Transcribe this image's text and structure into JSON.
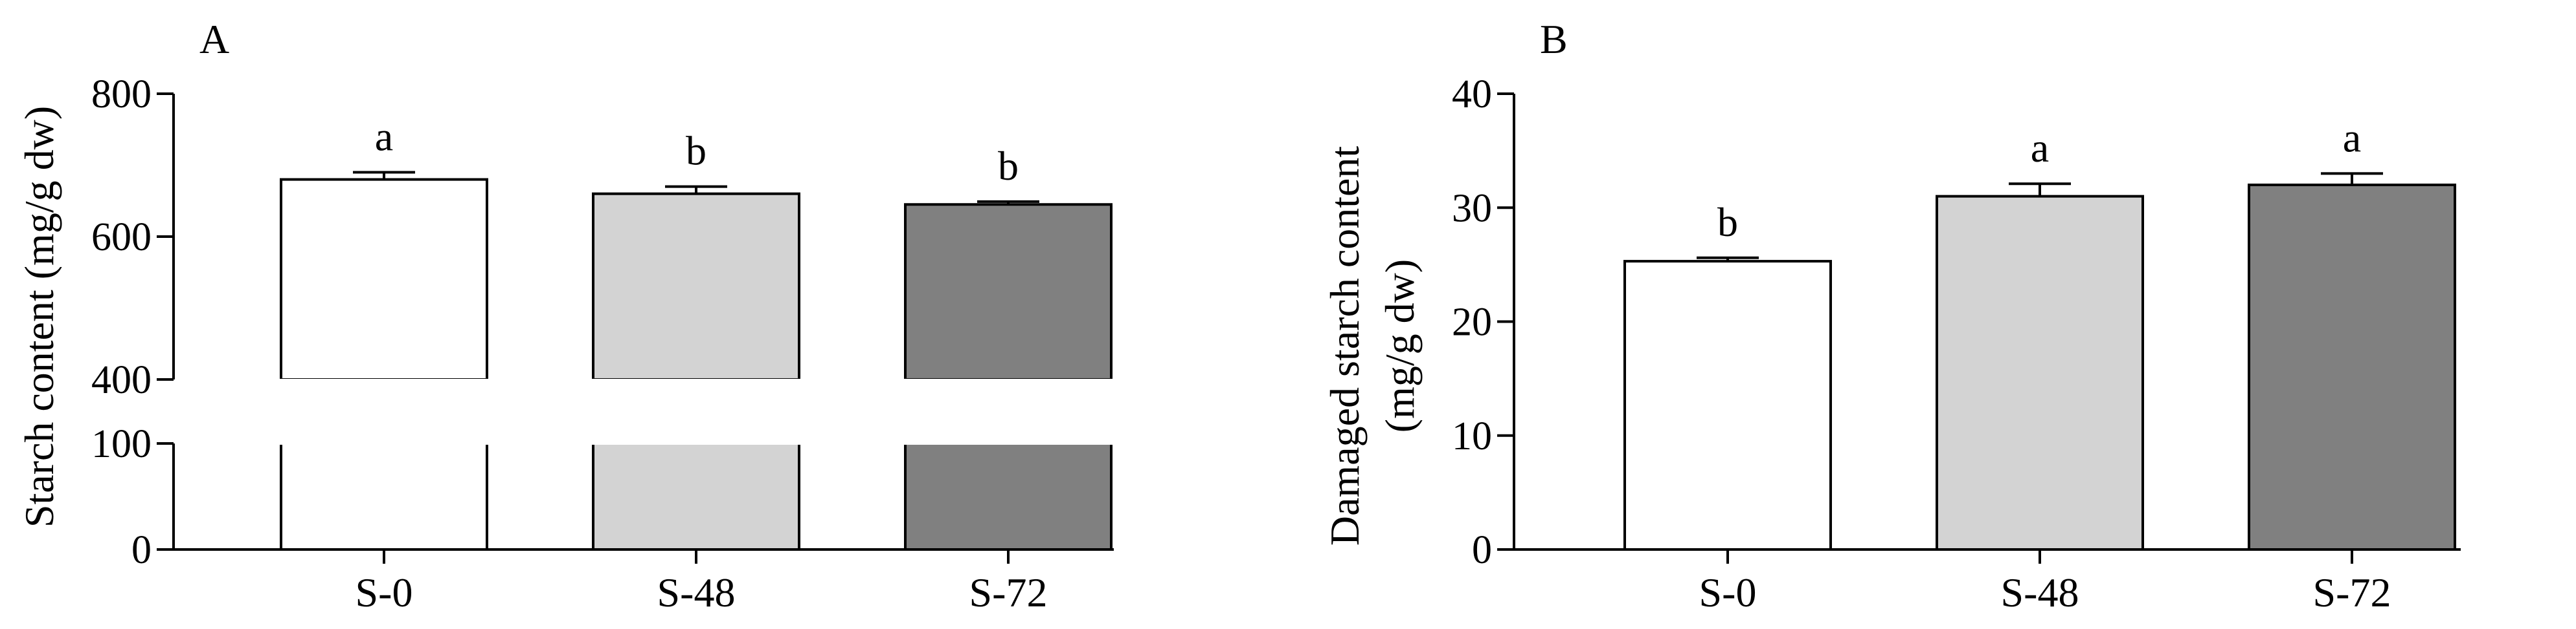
{
  "chart_data": [
    {
      "type": "bar",
      "panel": "A",
      "title": "",
      "xlabel": "",
      "ylabel": "Starch content (mg/g dw)",
      "categories": [
        "S-0",
        "S-48",
        "S-72"
      ],
      "values": [
        680,
        660,
        645
      ],
      "errors": [
        10,
        10,
        4
      ],
      "significance": [
        "a",
        "b",
        "b"
      ],
      "colors": [
        "#ffffff",
        "#d3d3d3",
        "#808080"
      ],
      "ylim": [
        0,
        800
      ],
      "axis_break": [
        100,
        400
      ],
      "yticks": [
        0,
        100,
        400,
        600,
        800
      ],
      "grid": false,
      "legend": "none"
    },
    {
      "type": "bar",
      "panel": "B",
      "title": "",
      "xlabel": "",
      "ylabel": [
        "Damaged starch content",
        "(mg/g dw)"
      ],
      "categories": [
        "S-0",
        "S-48",
        "S-72"
      ],
      "values": [
        25.3,
        31.0,
        32.0
      ],
      "errors": [
        0.3,
        1.1,
        1.0
      ],
      "significance": [
        "b",
        "a",
        "a"
      ],
      "colors": [
        "#ffffff",
        "#d3d3d3",
        "#808080"
      ],
      "ylim": [
        0,
        40
      ],
      "yticks": [
        0,
        10,
        20,
        30,
        40
      ],
      "grid": false,
      "legend": "none"
    }
  ]
}
